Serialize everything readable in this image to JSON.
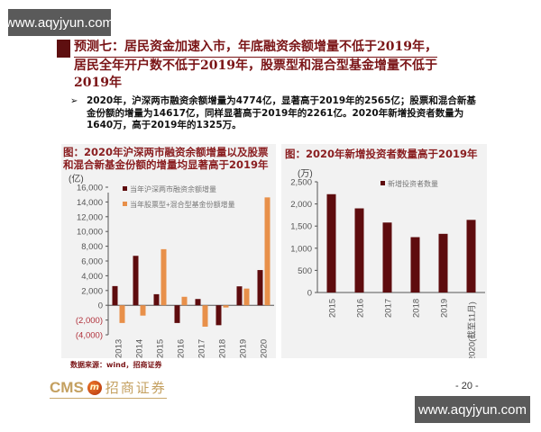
{
  "watermark": {
    "top": "www.aqyjyun.com",
    "bottom": "www.aqyjyun.com"
  },
  "header": {
    "line1": "预测七：居民资金加速入市，年底融资余额增量不低于2019年，",
    "line2": "居民全年开户数不低于2019年，股票型和混合型基金增量不低于",
    "line3": "2019年"
  },
  "bullet": {
    "marker": "➢",
    "text": "2020年，沪深两市融资余额增量为4774亿，显著高于2019年的2565亿；股票和混合新基金份额的增量为14617亿，同样显著高于2019年的2261亿。2020年新增投资者数量为1640万，高于2019年的1325万。"
  },
  "source": "数据来源：wind，招商证券",
  "footer": {
    "logo_en": "CMS",
    "logo_badge": "m",
    "logo_cn": "招商证券",
    "page": "- 20 -"
  },
  "colors": {
    "dark_red": "#5e0c0e",
    "orange": "#e8904a",
    "title_red": "#7a1416",
    "negative_label": "#b0303a"
  },
  "chart_data": [
    {
      "type": "bar",
      "title": "图：2020年沪深两市融资余额增量以及股票和混合新基金份额的增量均显著高于2019年",
      "ylabel": "(亿)",
      "ylim": [
        -4000,
        16000
      ],
      "yticks": [
        "16,000",
        "14,000",
        "12,000",
        "10,000",
        "8,000",
        "6,000",
        "4,000",
        "2,000",
        "0",
        "(2,000)",
        "(4,000)"
      ],
      "categories": [
        "2013",
        "2014",
        "2015",
        "2016",
        "2017",
        "2018",
        "2019",
        "2020"
      ],
      "series": [
        {
          "name": "当年沪深两市融资余额增量",
          "color": "#5e0c0e",
          "values": [
            2600,
            6700,
            1500,
            -2400,
            850,
            -2700,
            2565,
            4774
          ]
        },
        {
          "name": "当年股票型+混合型基金份额增量",
          "color": "#e8904a",
          "values": [
            -2400,
            -1400,
            7600,
            1150,
            -2900,
            -300,
            2261,
            14617
          ]
        }
      ],
      "legend_position": "top"
    },
    {
      "type": "bar",
      "title": "图：2020年新增投资者数量高于2019年",
      "ylabel": "(万)",
      "ylim": [
        0,
        2500
      ],
      "yticks": [
        "2,500",
        "2,000",
        "1,500",
        "1,000",
        "500",
        "0"
      ],
      "categories": [
        "2015",
        "2016",
        "2017",
        "2018",
        "2019",
        "2020(截至11月)"
      ],
      "series": [
        {
          "name": "新增投资者数量",
          "color": "#5e0c0e",
          "values": [
            2220,
            1900,
            1580,
            1250,
            1325,
            1640
          ]
        }
      ],
      "legend_position": "top"
    }
  ]
}
